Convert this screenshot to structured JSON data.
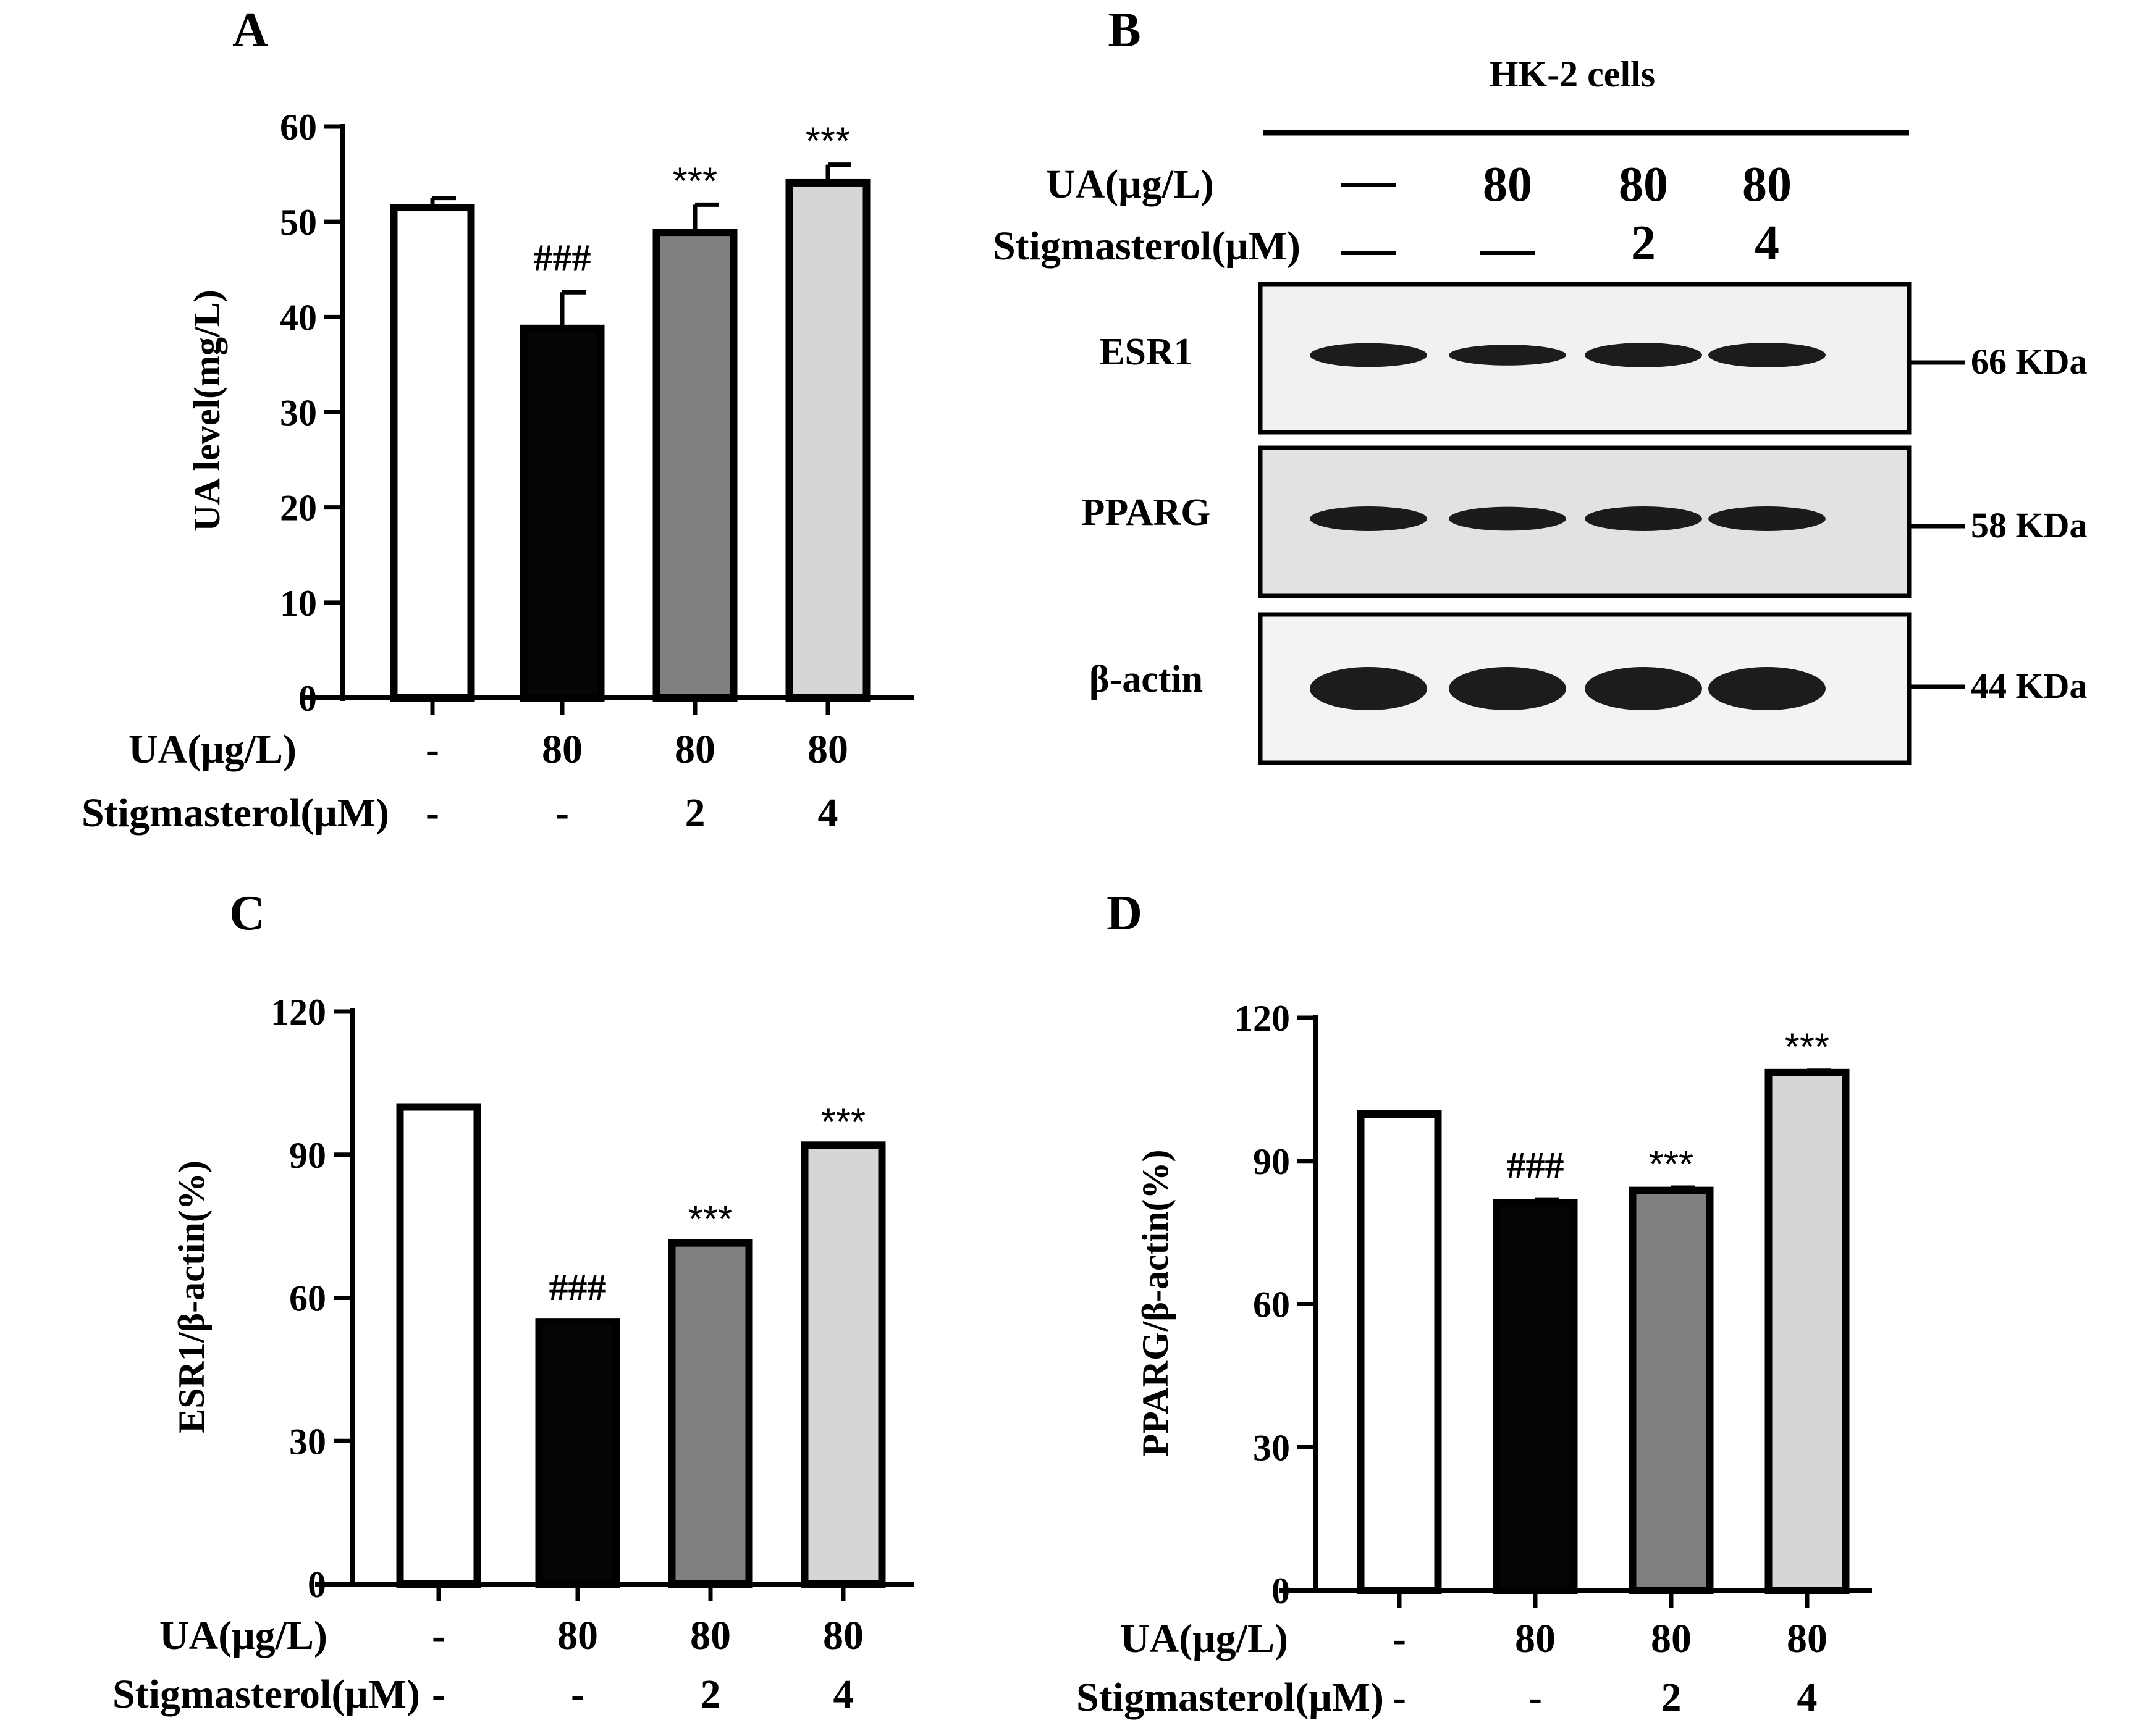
{
  "panels": {
    "A": "A",
    "B": "B",
    "C": "C",
    "D": "D"
  },
  "conditions": {
    "ua_label": "UA(μg/L)",
    "stig_label": "Stigmasterol(μM)",
    "ua_values": [
      "-",
      "80",
      "80",
      "80"
    ],
    "stig_values": [
      "-",
      "-",
      "2",
      "4"
    ]
  },
  "colors": {
    "bars": [
      "#ffffff",
      "#050505",
      "#7f7f7f",
      "#d6d6d6"
    ],
    "outline": "#000000"
  },
  "chart_data": [
    {
      "panel": "A",
      "type": "bar",
      "ylabel": "UA level(mg/L)",
      "ylim": [
        0,
        60
      ],
      "yticks": [
        0,
        10,
        20,
        30,
        40,
        50,
        60
      ],
      "values": [
        51.5,
        38.8,
        48.9,
        54.1
      ],
      "errors": [
        1.0,
        3.8,
        2.9,
        1.9
      ],
      "annotations": [
        "",
        "###",
        "***",
        "***"
      ]
    },
    {
      "panel": "C",
      "type": "bar",
      "ylabel": "ESR1/β-actin(%)",
      "ylim": [
        0,
        120
      ],
      "yticks": [
        0,
        30,
        60,
        90,
        120
      ],
      "values": [
        100,
        55,
        71.5,
        92
      ],
      "errors": [
        0,
        0,
        0,
        0
      ],
      "annotations": [
        "",
        "###",
        "***",
        "***"
      ]
    },
    {
      "panel": "D",
      "type": "bar",
      "ylabel": "PPARG/β-actin(%)",
      "ylim": [
        0,
        120
      ],
      "yticks": [
        0,
        30,
        60,
        90,
        120
      ],
      "values": [
        99.8,
        81.2,
        83.8,
        108.5
      ],
      "errors": [
        0,
        0.6,
        0.6,
        0.4
      ],
      "annotations": [
        "",
        "###",
        "***",
        "***"
      ]
    }
  ],
  "blot": {
    "title": "HK-2 cells",
    "ua_values": [
      "—",
      "80",
      "80",
      "80"
    ],
    "stig_values": [
      "—",
      "—",
      "2",
      "4"
    ],
    "rows": [
      {
        "protein": "ESR1",
        "mw": "66 KDa",
        "intensities": [
          0.92,
          0.8,
          0.95,
          0.95
        ]
      },
      {
        "protein": "PPARG",
        "mw": "58 KDa",
        "intensities": [
          0.95,
          0.92,
          0.95,
          0.95
        ]
      },
      {
        "protein": "β-actin",
        "mw": "44 KDa",
        "intensities": [
          1.0,
          1.0,
          1.0,
          1.0
        ]
      }
    ]
  }
}
